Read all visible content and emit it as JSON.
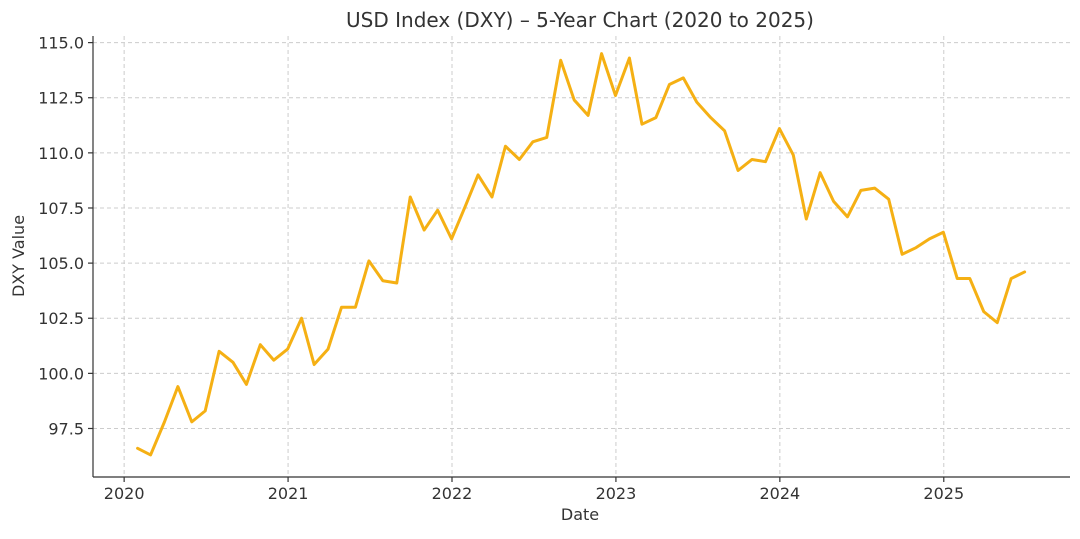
{
  "chart_data": {
    "type": "line",
    "title": "USD Index (DXY) – 5-Year Chart (2020 to 2025)",
    "xlabel": "Date",
    "ylabel": "DXY Value",
    "xlim": [
      2019.81,
      2025.77
    ],
    "ylim": [
      95.3,
      115.3
    ],
    "x_ticks": [
      {
        "value": 2020,
        "label": "2020"
      },
      {
        "value": 2021,
        "label": "2021"
      },
      {
        "value": 2022,
        "label": "2022"
      },
      {
        "value": 2023,
        "label": "2023"
      },
      {
        "value": 2024,
        "label": "2024"
      },
      {
        "value": 2025,
        "label": "2025"
      }
    ],
    "y_ticks": [
      {
        "value": 97.5,
        "label": "97.5"
      },
      {
        "value": 100.0,
        "label": "100.0"
      },
      {
        "value": 102.5,
        "label": "102.5"
      },
      {
        "value": 105.0,
        "label": "105.0"
      },
      {
        "value": 107.5,
        "label": "107.5"
      },
      {
        "value": 110.0,
        "label": "110.0"
      },
      {
        "value": 112.5,
        "label": "112.5"
      },
      {
        "value": 115.0,
        "label": "115.0"
      }
    ],
    "grid": true,
    "line_color": "#f5b014",
    "series": [
      {
        "x": [
          "2020-01-31",
          "2020-02-29",
          "2020-03-31",
          "2020-04-30",
          "2020-05-31",
          "2020-06-30",
          "2020-07-31",
          "2020-08-31",
          "2020-09-30",
          "2020-10-31",
          "2020-11-30",
          "2020-12-31",
          "2021-01-31",
          "2021-02-28",
          "2021-03-31",
          "2021-04-30",
          "2021-05-31",
          "2021-06-30",
          "2021-07-31",
          "2021-08-31",
          "2021-09-30",
          "2021-10-31",
          "2021-11-30",
          "2021-12-31",
          "2022-01-31",
          "2022-02-28",
          "2022-03-31",
          "2022-04-30",
          "2022-05-31",
          "2022-06-30",
          "2022-07-31",
          "2022-08-31",
          "2022-09-30",
          "2022-10-31",
          "2022-11-30",
          "2022-12-31",
          "2023-01-31",
          "2023-02-28",
          "2023-03-31",
          "2023-04-30",
          "2023-05-31",
          "2023-06-30",
          "2023-07-31",
          "2023-08-31",
          "2023-09-30",
          "2023-10-31",
          "2023-11-30",
          "2023-12-31",
          "2024-01-31",
          "2024-02-29",
          "2024-03-31",
          "2024-04-30",
          "2024-05-31",
          "2024-06-30",
          "2024-07-31",
          "2024-08-31",
          "2024-09-30",
          "2024-10-31",
          "2024-11-30",
          "2024-12-31",
          "2025-01-31",
          "2025-02-28",
          "2025-03-31",
          "2025-04-30",
          "2025-05-31",
          "2025-06-30"
        ],
        "values": [
          96.6,
          96.3,
          97.8,
          99.4,
          97.8,
          98.3,
          101.0,
          100.5,
          99.5,
          101.3,
          100.6,
          101.1,
          102.5,
          100.4,
          101.1,
          103.0,
          103.0,
          105.1,
          104.2,
          104.1,
          108.0,
          106.5,
          107.4,
          106.1,
          107.6,
          109.0,
          108.0,
          110.3,
          109.7,
          110.5,
          110.7,
          114.2,
          112.4,
          111.7,
          114.5,
          112.6,
          114.3,
          111.3,
          111.6,
          113.1,
          113.4,
          112.3,
          111.6,
          111.0,
          109.2,
          109.7,
          109.6,
          111.1,
          109.9,
          107.0,
          109.1,
          107.8,
          107.1,
          108.3,
          108.4,
          107.9,
          105.4,
          105.7,
          106.1,
          106.4,
          104.3,
          104.3,
          102.8,
          102.3,
          104.3,
          104.6
        ]
      }
    ]
  }
}
